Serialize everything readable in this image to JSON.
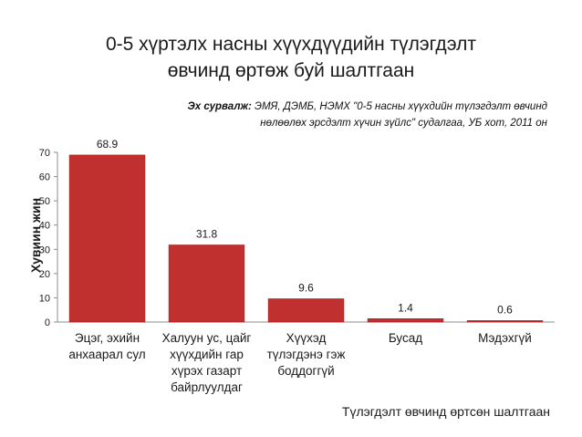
{
  "title": {
    "line1": "0-5 хүртэлх насны хүүхдүүдийн түлэгдэлт",
    "line2": "өвчинд өртөж буй шалтгаан"
  },
  "source": {
    "label": "Эх сурвалж:",
    "text1": " ЭМЯ, ДЭМБ, НЭМХ \"0-5 насны хүүхдийн түлэгдэлт өвчинд",
    "text2": "нөлөөлөх эрсдэлт хүчин зүйлс\" судалгаа, УБ хот, 2011 он"
  },
  "colors": {
    "bar": "#c0302f",
    "bar_edge": "#a0201f",
    "axis": "#8c8c8c",
    "text": "#1a1a1a"
  },
  "chart_data": {
    "type": "bar",
    "title": "0-5 хүртэлх насны хүүхдүүдийн түлэгдэлт өвчинд өртөж буй шалтгаан",
    "ylabel": "Хувиин жин",
    "xlabel": "Түлэгдэлт өвчинд өртсөн шалтгаан",
    "ylim": [
      0,
      70
    ],
    "yticks": [
      0,
      10,
      20,
      30,
      40,
      50,
      60,
      70
    ],
    "grid": false,
    "categories": [
      [
        "Эцэг, эхийн",
        "анхаарал сул"
      ],
      [
        "Халуун ус, цайг",
        "хүүхдийн гар",
        "хүрэх газарт",
        "байрлуулдаг"
      ],
      [
        "Хүүхэд",
        "түлэгдэнэ гэж",
        "боддоггүй"
      ],
      [
        "Бусад"
      ],
      [
        "Мэдэхгүй"
      ]
    ],
    "values": [
      68.9,
      31.8,
      9.6,
      1.4,
      0.6
    ],
    "data_labels": [
      "68.9",
      "31.8",
      "9.6",
      "1.4",
      "0.6"
    ]
  }
}
